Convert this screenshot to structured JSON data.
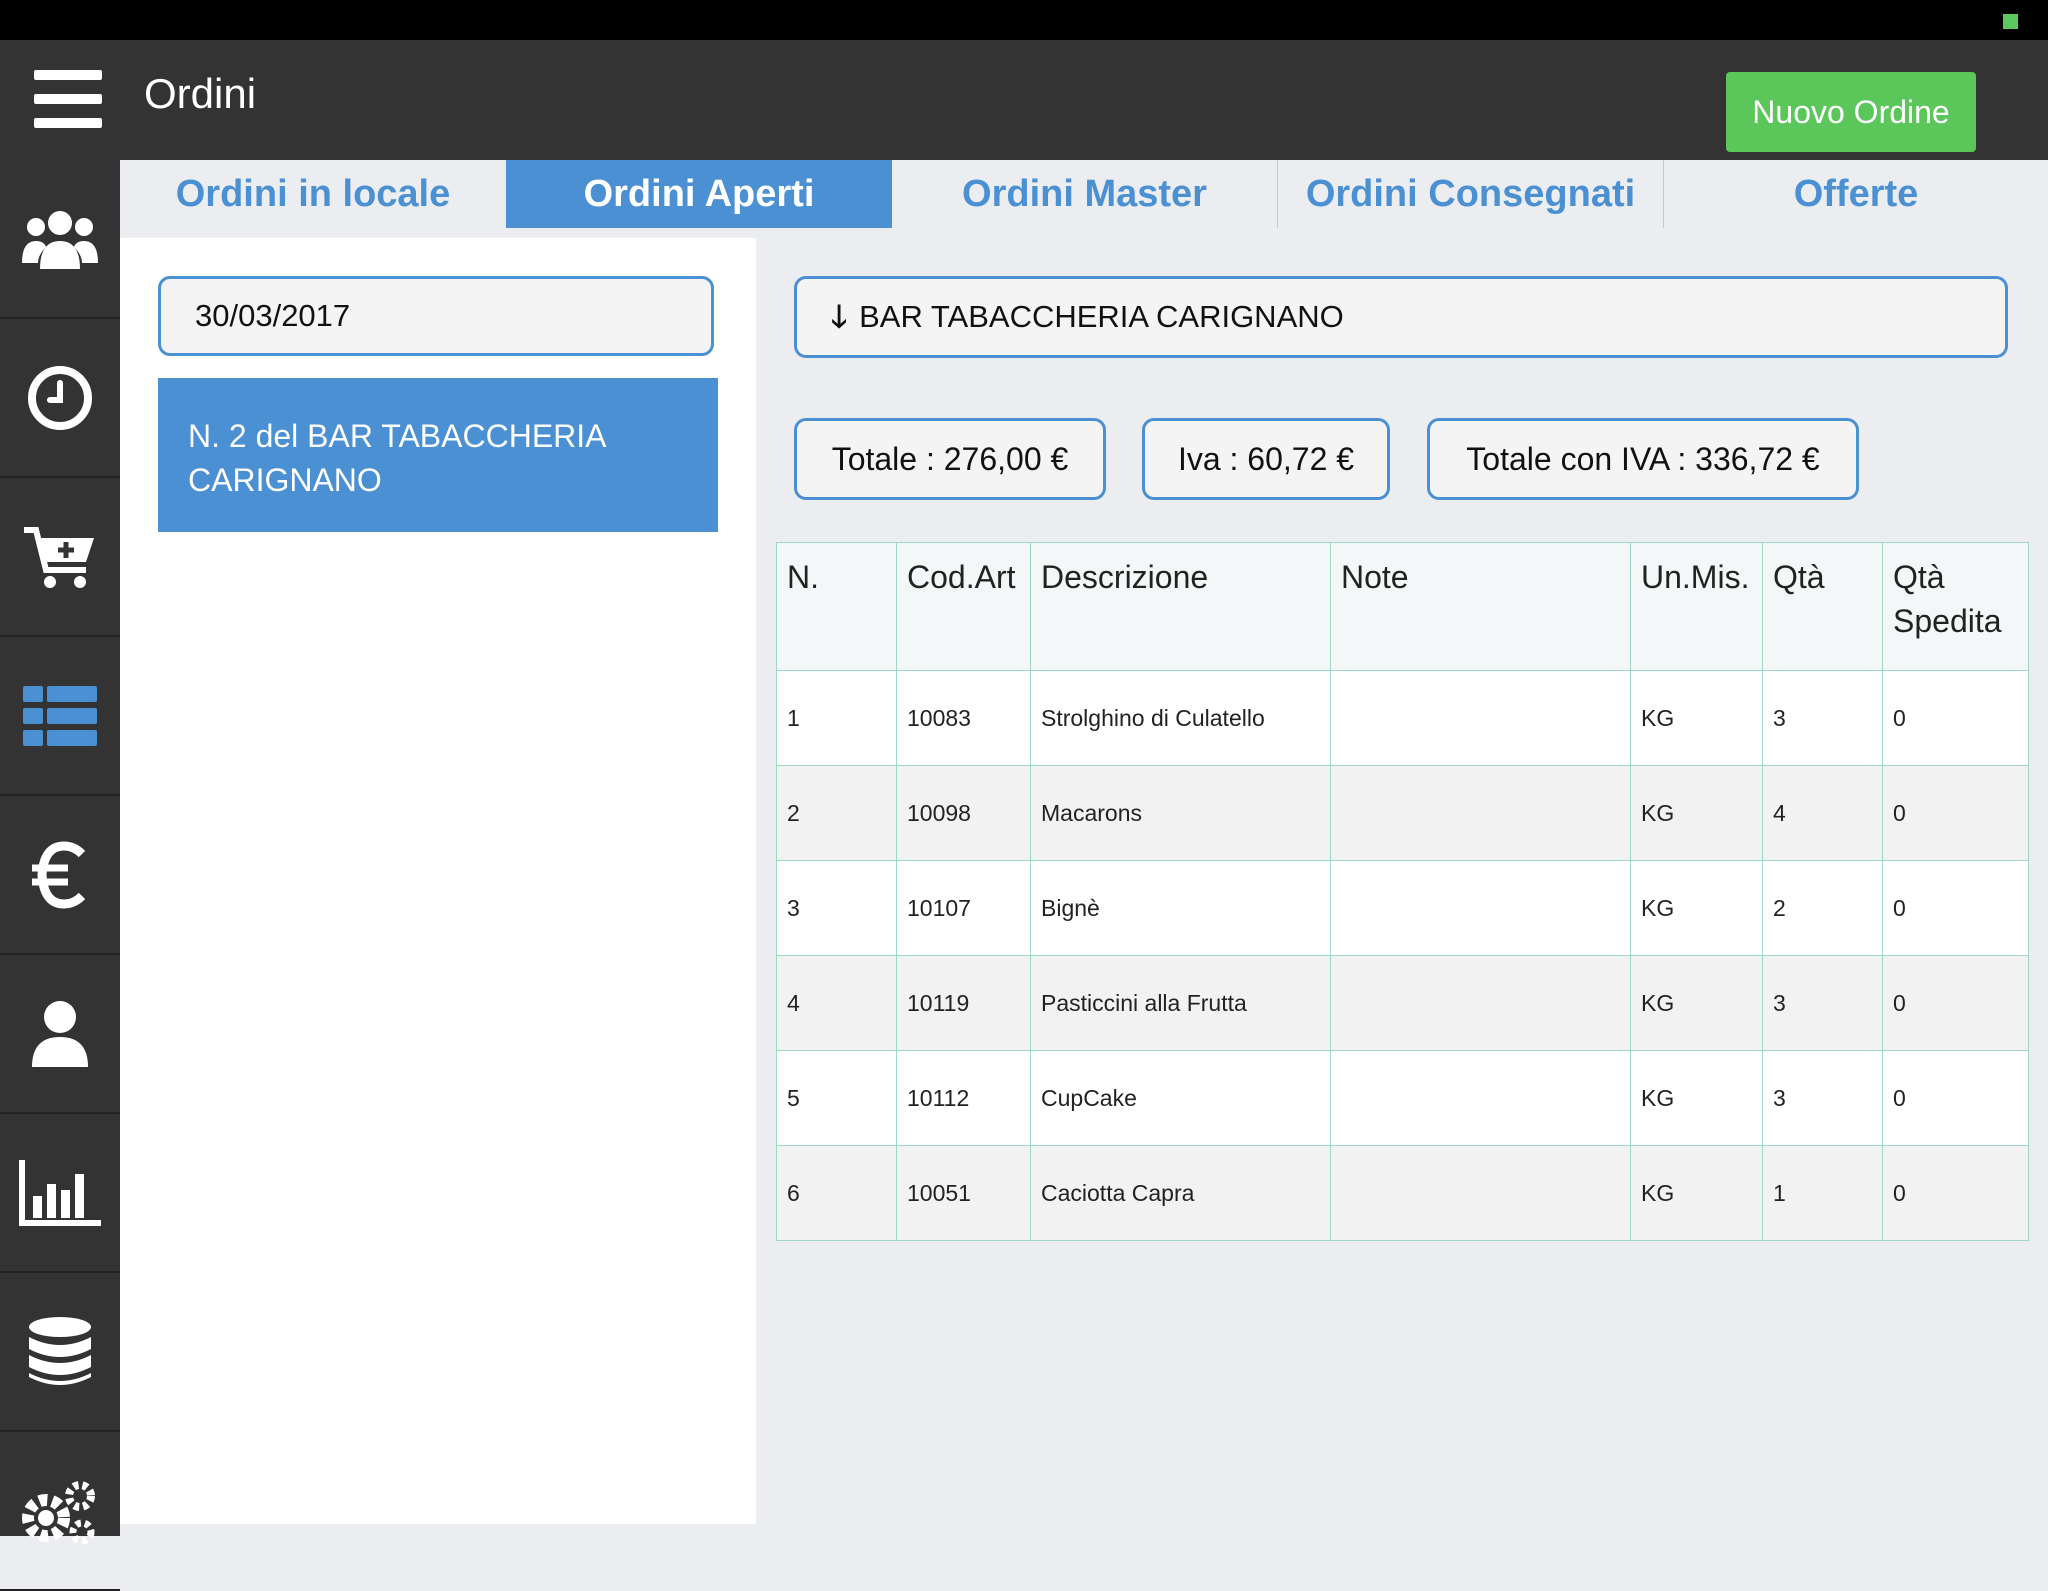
{
  "header": {
    "title": "Ordini",
    "new_order_label": "Nuovo Ordine"
  },
  "sidebar": {
    "items": [
      {
        "icon": "users-icon"
      },
      {
        "icon": "clock-icon"
      },
      {
        "icon": "cart-add-icon"
      },
      {
        "icon": "list-icon",
        "active": true
      },
      {
        "icon": "euro-icon"
      },
      {
        "icon": "user-icon"
      },
      {
        "icon": "bar-chart-icon"
      },
      {
        "icon": "database-icon"
      },
      {
        "icon": "gears-icon"
      }
    ]
  },
  "tabs": [
    {
      "label": "Ordini in locale"
    },
    {
      "label": "Ordini Aperti",
      "active": true
    },
    {
      "label": "Ordini Master"
    },
    {
      "label": "Ordini Consegnati"
    },
    {
      "label": "Offerte"
    }
  ],
  "left": {
    "date": "30/03/2017",
    "order_line1": "N. 2 del BAR TABACCHERIA",
    "order_line2": "CARIGNANO"
  },
  "customer": {
    "name": "BAR TABACCHERIA CARIGNANO",
    "arrow": "🡓"
  },
  "totals": {
    "totale": "Totale : 276,00 €",
    "iva": "Iva : 60,72 €",
    "totale_iva": "Totale con IVA : 336,72 €"
  },
  "table": {
    "headers": [
      "N.",
      "Cod.Art",
      "Descrizione",
      "Note",
      "Un.Mis.",
      "Qtà",
      "Qtà Spedita"
    ],
    "rows": [
      [
        "1",
        "10083",
        "Strolghino di Culatello",
        "",
        "KG",
        "3",
        "0"
      ],
      [
        "2",
        "10098",
        "Macarons",
        "",
        "KG",
        "4",
        "0"
      ],
      [
        "3",
        "10107",
        "Bignè",
        "",
        "KG",
        "2",
        "0"
      ],
      [
        "4",
        "10119",
        "Pasticcini alla Frutta",
        "",
        "KG",
        "3",
        "0"
      ],
      [
        "5",
        "10112",
        "CupCake",
        "",
        "KG",
        "3",
        "0"
      ],
      [
        "6",
        "10051",
        "Caciotta Capra",
        "",
        "KG",
        "1",
        "0"
      ]
    ]
  }
}
